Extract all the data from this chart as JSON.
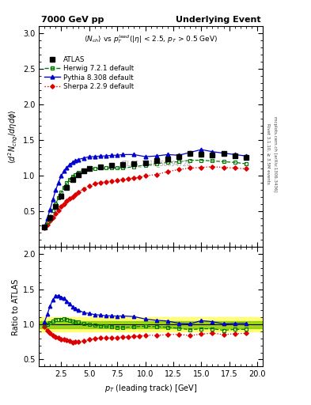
{
  "title_left": "7000 GeV pp",
  "title_right": "Underlying Event",
  "xlabel": "p_{T} (leading track) [GeV]",
  "ylabel_main": "\\langle d^2 N_{chg}/d\\eta d\\phi \\rangle",
  "ylabel_ratio": "Ratio to ATLAS",
  "watermark": "ATLAS_2010_S8894728",
  "xlim": [
    0.5,
    20.5
  ],
  "ylim_main": [
    0,
    3.1
  ],
  "ylim_ratio": [
    0.4,
    2.1
  ],
  "yticks_main": [
    0.5,
    1.0,
    1.5,
    2.0,
    2.5,
    3.0
  ],
  "yticks_ratio": [
    0.5,
    1.0,
    1.5,
    2.0
  ],
  "atlas_x": [
    1.0,
    1.5,
    2.0,
    2.5,
    3.0,
    3.5,
    4.0,
    4.5,
    5.0,
    6.0,
    7.0,
    8.0,
    9.0,
    10.0,
    11.0,
    12.0,
    13.0,
    14.0,
    15.0,
    16.0,
    17.0,
    18.0,
    19.0
  ],
  "atlas_y": [
    0.28,
    0.42,
    0.57,
    0.72,
    0.84,
    0.95,
    1.02,
    1.07,
    1.1,
    1.13,
    1.15,
    1.16,
    1.17,
    1.18,
    1.21,
    1.24,
    1.27,
    1.32,
    1.3,
    1.29,
    1.31,
    1.28,
    1.26
  ],
  "atlas_yerr": [
    0.01,
    0.01,
    0.01,
    0.01,
    0.01,
    0.01,
    0.01,
    0.01,
    0.01,
    0.01,
    0.01,
    0.01,
    0.01,
    0.01,
    0.02,
    0.02,
    0.02,
    0.02,
    0.02,
    0.02,
    0.02,
    0.02,
    0.02
  ],
  "herwig_x": [
    1.0,
    1.25,
    1.5,
    1.75,
    2.0,
    2.25,
    2.5,
    2.75,
    3.0,
    3.25,
    3.5,
    3.75,
    4.0,
    4.5,
    5.0,
    5.5,
    6.0,
    6.5,
    7.0,
    7.5,
    8.0,
    9.0,
    10.0,
    11.0,
    12.0,
    13.0,
    14.0,
    15.0,
    16.0,
    17.0,
    18.0,
    19.0
  ],
  "herwig_y": [
    0.28,
    0.35,
    0.43,
    0.52,
    0.61,
    0.69,
    0.77,
    0.84,
    0.9,
    0.95,
    0.99,
    1.02,
    1.05,
    1.08,
    1.1,
    1.1,
    1.11,
    1.11,
    1.11,
    1.11,
    1.11,
    1.13,
    1.15,
    1.17,
    1.19,
    1.2,
    1.22,
    1.22,
    1.21,
    1.2,
    1.19,
    1.17
  ],
  "pythia_x": [
    1.0,
    1.25,
    1.5,
    1.75,
    2.0,
    2.25,
    2.5,
    2.75,
    3.0,
    3.25,
    3.5,
    3.75,
    4.0,
    4.5,
    5.0,
    5.5,
    6.0,
    6.5,
    7.0,
    7.5,
    8.0,
    9.0,
    10.0,
    11.0,
    12.0,
    13.0,
    14.0,
    15.0,
    16.0,
    17.0,
    18.0,
    19.0
  ],
  "pythia_y": [
    0.29,
    0.4,
    0.53,
    0.67,
    0.8,
    0.91,
    1.0,
    1.07,
    1.12,
    1.16,
    1.19,
    1.21,
    1.23,
    1.25,
    1.27,
    1.27,
    1.28,
    1.28,
    1.29,
    1.29,
    1.3,
    1.3,
    1.27,
    1.28,
    1.3,
    1.29,
    1.33,
    1.37,
    1.34,
    1.32,
    1.3,
    1.28
  ],
  "sherpa_x": [
    1.0,
    1.25,
    1.5,
    1.75,
    2.0,
    2.25,
    2.5,
    2.75,
    3.0,
    3.25,
    3.5,
    3.75,
    4.0,
    4.5,
    5.0,
    5.5,
    6.0,
    6.5,
    7.0,
    7.5,
    8.0,
    8.5,
    9.0,
    9.5,
    10.0,
    11.0,
    12.0,
    13.0,
    14.0,
    15.0,
    16.0,
    17.0,
    18.0,
    19.0
  ],
  "sherpa_y": [
    0.27,
    0.32,
    0.37,
    0.42,
    0.47,
    0.52,
    0.57,
    0.61,
    0.65,
    0.68,
    0.71,
    0.74,
    0.77,
    0.82,
    0.86,
    0.89,
    0.91,
    0.92,
    0.93,
    0.94,
    0.95,
    0.96,
    0.97,
    0.98,
    1.0,
    1.02,
    1.06,
    1.09,
    1.11,
    1.12,
    1.13,
    1.12,
    1.11,
    1.1
  ],
  "atlas_color": "#000000",
  "herwig_color": "#007700",
  "pythia_color": "#0000cc",
  "sherpa_color": "#dd0000",
  "band_yellow": 0.1,
  "band_green": 0.05,
  "legend_labels": [
    "ATLAS",
    "Herwig 7.2.1 default",
    "Pythia 8.308 default",
    "Sherpa 2.2.9 default"
  ]
}
